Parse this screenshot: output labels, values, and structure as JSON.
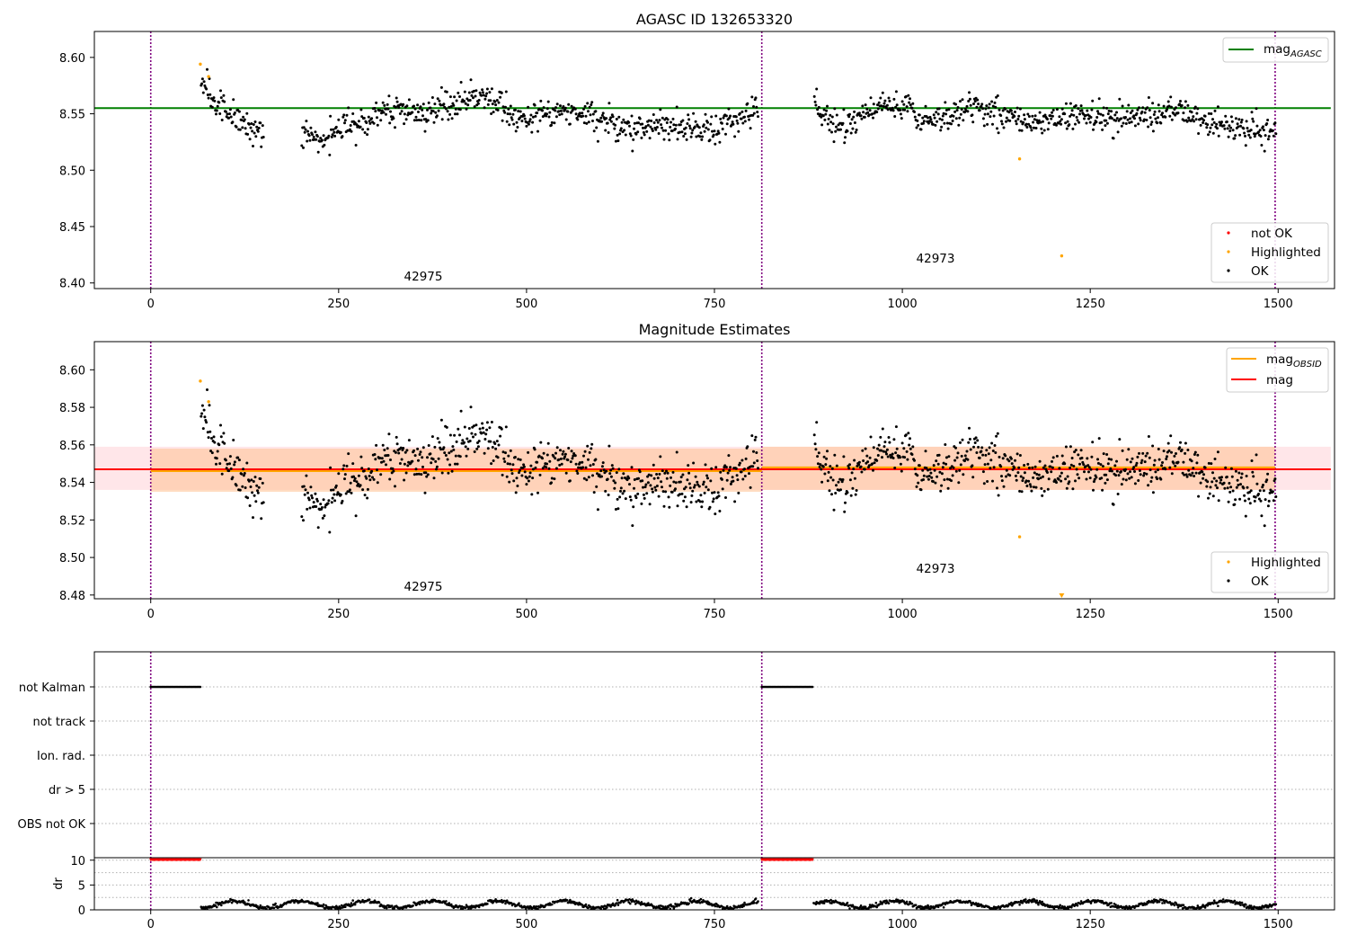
{
  "colors": {
    "ok": "#000000",
    "highlighted": "#ffa500",
    "not_ok": "#ff0000",
    "agasc_line": "#008000",
    "mag_line": "#ff0000",
    "obsid_line": "#ffa500",
    "obs_boundary": "#800080",
    "band_fill": "#ffb6c1",
    "obsid_band_fill": "#ffc59a"
  },
  "chart_data": [
    {
      "type": "scatter",
      "title": "AGASC ID 132653320",
      "xlim": [
        -75,
        1575
      ],
      "ylim": [
        8.395,
        8.623
      ],
      "xticks": [
        0,
        250,
        500,
        750,
        1000,
        1250,
        1500
      ],
      "yticks": [
        8.4,
        8.45,
        8.5,
        8.55,
        8.6
      ],
      "ytick_labels": [
        "8.40",
        "8.45",
        "8.50",
        "8.55",
        "8.60"
      ],
      "obs_boundaries": [
        0,
        813,
        1496
      ],
      "horizontal_lines": [
        {
          "name": "mag_AGASC",
          "y": 8.555,
          "x_range": [
            -75,
            1570
          ]
        }
      ],
      "annotations": [
        {
          "text": "42975",
          "x": 406,
          "y": 8.405
        },
        {
          "text": "42973",
          "x": 1150,
          "y": 8.421
        }
      ],
      "legends": [
        {
          "placement": "upper right",
          "entries": [
            {
              "label": "mag",
              "sub": "AGASC",
              "kind": "line",
              "color": "#008000"
            }
          ]
        },
        {
          "placement": "lower right",
          "entries": [
            {
              "label": "not OK",
              "kind": "dot",
              "color": "#ff0000"
            },
            {
              "label": "Highlighted",
              "kind": "dot",
              "color": "#ffa500"
            },
            {
              "label": "OK",
              "kind": "dot",
              "color": "#000000"
            }
          ]
        }
      ],
      "highlighted_points": [
        [
          66,
          8.594
        ],
        [
          77,
          8.583
        ],
        [
          1156,
          8.51
        ],
        [
          1212,
          8.424
        ]
      ],
      "ok_series_segments": [
        {
          "x_range": [
            67,
            808
          ],
          "y_start": 8.581,
          "gap_note": ""
        },
        {
          "x_range": [
            882,
            1497
          ],
          "y_start": 8.567
        }
      ]
    },
    {
      "type": "scatter",
      "title": "Magnitude Estimates",
      "xlim": [
        -75,
        1575
      ],
      "ylim": [
        8.478,
        8.615
      ],
      "xticks": [
        0,
        250,
        500,
        750,
        1000,
        1250,
        1500
      ],
      "yticks": [
        8.48,
        8.5,
        8.52,
        8.54,
        8.56,
        8.58,
        8.6
      ],
      "ytick_labels": [
        "8.48",
        "8.50",
        "8.52",
        "8.54",
        "8.56",
        "8.58",
        "8.60"
      ],
      "obs_boundaries": [
        0,
        813,
        1496
      ],
      "mag": 8.547,
      "mag_band": [
        8.536,
        8.559
      ],
      "mag_obsid": [
        {
          "x_range": [
            0,
            813
          ],
          "y": 8.546,
          "band": [
            8.535,
            8.558
          ]
        },
        {
          "x_range": [
            813,
            1496
          ],
          "y": 8.548,
          "band": [
            8.536,
            8.559
          ]
        }
      ],
      "annotations": [
        {
          "text": "42975",
          "x": 406,
          "y": 8.483
        },
        {
          "text": "42973",
          "x": 1150,
          "y": 8.495
        }
      ],
      "legends": [
        {
          "placement": "upper right",
          "entries": [
            {
              "label": "mag",
              "sub": "OBSID",
              "kind": "line",
              "color": "#ffa500"
            },
            {
              "label": "mag",
              "kind": "line",
              "color": "#ff0000"
            }
          ]
        },
        {
          "placement": "lower right",
          "entries": [
            {
              "label": "Highlighted",
              "kind": "dot",
              "color": "#ffa500"
            },
            {
              "label": "OK",
              "kind": "dot",
              "color": "#000000"
            }
          ]
        }
      ],
      "highlighted_points": [
        [
          66,
          8.594
        ],
        [
          77,
          8.583
        ],
        [
          1156,
          8.511
        ],
        [
          1212,
          8.48
        ]
      ]
    },
    {
      "type": "scatter",
      "title": "",
      "xlim": [
        -75,
        1575
      ],
      "flag_rows": [
        "not Kalman",
        "not track",
        "Ion. rad.",
        "dr > 5",
        "OBS not OK"
      ],
      "flag_segments": [
        {
          "row": "not Kalman",
          "x_range": [
            0,
            67
          ]
        },
        {
          "row": "not Kalman",
          "x_range": [
            813,
            881
          ]
        }
      ]
    },
    {
      "type": "scatter",
      "title": "",
      "xlim": [
        -75,
        1575
      ],
      "ylim": [
        0,
        10.5
      ],
      "ylabel": "dr",
      "xticks": [
        0,
        250,
        500,
        750,
        1000,
        1250,
        1500
      ],
      "yticks": [
        0,
        5,
        10
      ],
      "ytick_labels": [
        "0",
        "5",
        "10"
      ],
      "clipped_segments": [
        {
          "x_range": [
            0,
            67
          ],
          "y": 10
        },
        {
          "x_range": [
            813,
            881
          ],
          "y": 10
        }
      ],
      "ok_segments": [
        {
          "x_range": [
            67,
            808
          ]
        },
        {
          "x_range": [
            882,
            1497
          ]
        }
      ]
    }
  ]
}
